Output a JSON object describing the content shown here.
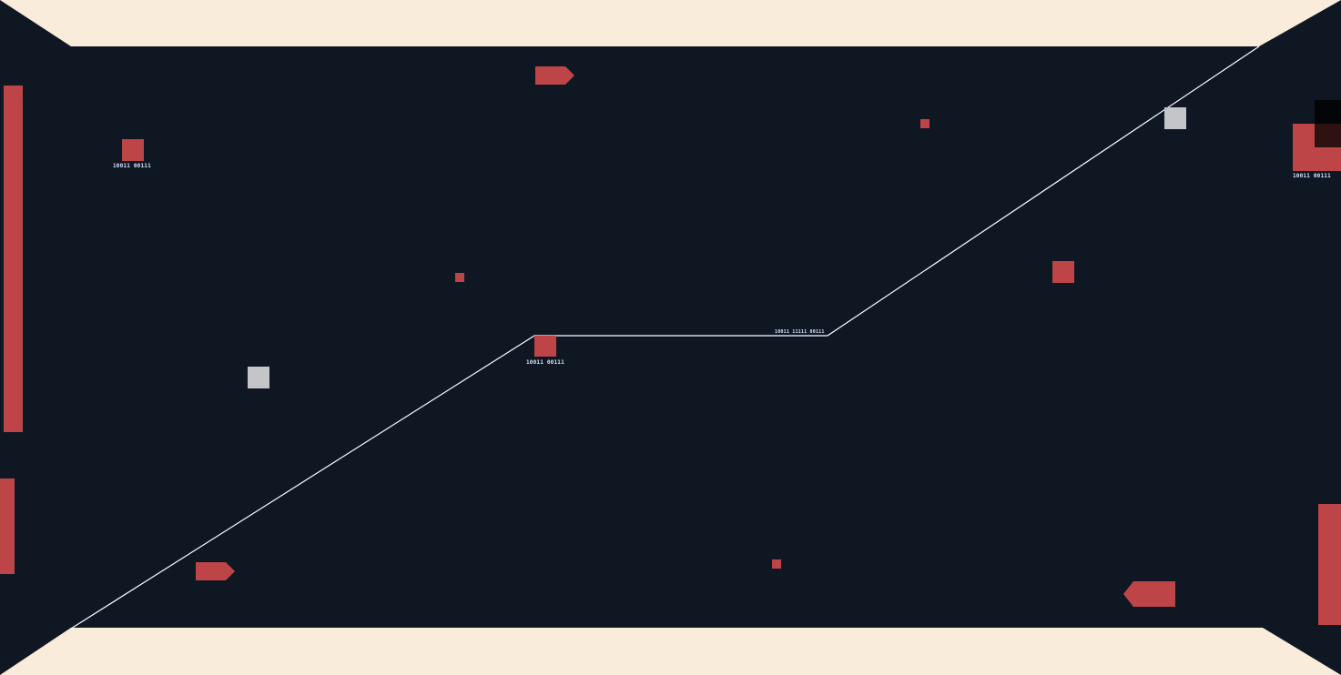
{
  "colors": {
    "field": "#0f1723",
    "wall": "#f9ecdb",
    "block": "#be4547",
    "pickup": "#c3c5c9",
    "track": "#ffffff",
    "tag_text": "#d7e6ff",
    "shade": "#000000"
  },
  "tags": {
    "block_top_left": "10011 00111",
    "block_center": "10011 00111",
    "block_right_edge": "10011 00111",
    "track_bend": "10011 11111 00111"
  },
  "icons": {
    "block": "red-square-icon",
    "pickup": "grey-square-icon",
    "ship": "arrow-ship-icon",
    "paddle": "red-bar-icon"
  }
}
